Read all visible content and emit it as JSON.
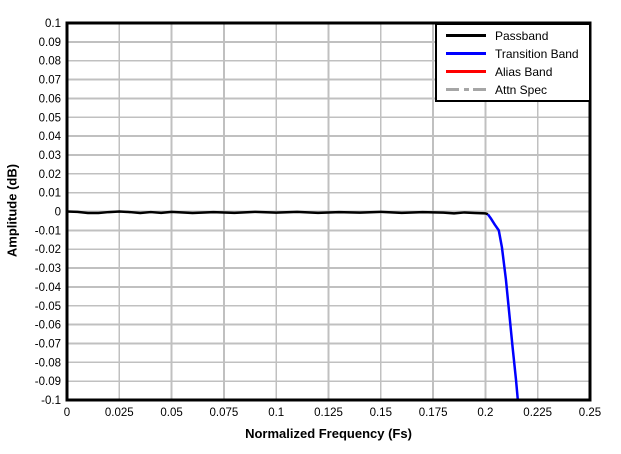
{
  "figure": {
    "background": "#ffffff",
    "plot_border_color": "#000000",
    "grid_color": "#c0c0c0"
  },
  "axes": {
    "xlabel": "Normalized Frequency (Fs)",
    "ylabel": "Amplitude (dB)",
    "xlim": [
      0,
      0.25
    ],
    "ylim": [
      -0.1,
      0.1
    ],
    "xticks": [
      0,
      0.025,
      0.05,
      0.075,
      0.1,
      0.125,
      0.15,
      0.175,
      0.2,
      0.225,
      0.25
    ],
    "xtick_labels": [
      "0",
      "0.025",
      "0.05",
      "0.075",
      "0.1",
      "0.125",
      "0.15",
      "0.175",
      "0.2",
      "0.225",
      "0.25"
    ],
    "yticks": [
      0.1,
      0.09,
      0.08,
      0.07,
      0.06,
      0.05,
      0.04,
      0.03,
      0.02,
      0.01,
      0,
      -0.01,
      -0.02,
      -0.03,
      -0.04,
      -0.05,
      -0.06,
      -0.07,
      -0.08,
      -0.09,
      -0.1
    ],
    "ytick_labels": [
      "0.1",
      "0.09",
      "0.08",
      "0.07",
      "0.06",
      "0.05",
      "0.04",
      "0.03",
      "0.02",
      "0.01",
      "0",
      "-0.01",
      "-0.02",
      "-0.03",
      "-0.04",
      "-0.05",
      "-0.06",
      "-0.07",
      "-0.08",
      "-0.09",
      "-0.1"
    ]
  },
  "legend": {
    "entries": [
      {
        "label": "Passband",
        "color": "#000000",
        "style": "solid"
      },
      {
        "label": "Transition Band",
        "color": "#0000ff",
        "style": "solid"
      },
      {
        "label": "Alias Band",
        "color": "#ff0000",
        "style": "solid"
      },
      {
        "label": "Attn Spec",
        "color": "#a6a6a6",
        "style": "dash-dot"
      }
    ]
  },
  "chart_data": {
    "type": "line",
    "title": "",
    "xlabel": "Normalized Frequency (Fs)",
    "ylabel": "Amplitude (dB)",
    "xlim": [
      0,
      0.25
    ],
    "ylim": [
      -0.1,
      0.1
    ],
    "grid": true,
    "legend_position": "upper right",
    "series": [
      {
        "name": "Passband",
        "color": "#000000",
        "style": "solid",
        "x": [
          0,
          0.005,
          0.01,
          0.015,
          0.02,
          0.025,
          0.03,
          0.035,
          0.04,
          0.045,
          0.05,
          0.06,
          0.07,
          0.08,
          0.09,
          0.1,
          0.11,
          0.12,
          0.13,
          0.14,
          0.15,
          0.16,
          0.17,
          0.18,
          0.185,
          0.19,
          0.195,
          0.2,
          0.2012
        ],
        "y": [
          0,
          -0.0002,
          -0.0008,
          -0.0008,
          -0.0003,
          0,
          -0.0003,
          -0.0008,
          -0.0003,
          -0.0007,
          -0.0002,
          -0.0008,
          -0.0003,
          -0.0007,
          -0.0002,
          -0.0006,
          -0.0002,
          -0.0007,
          -0.0003,
          -0.0006,
          -0.0002,
          -0.0007,
          -0.0003,
          -0.0006,
          -0.001,
          -0.0005,
          -0.0008,
          -0.001,
          -0.0015
        ]
      },
      {
        "name": "Transition Band",
        "color": "#0000ff",
        "style": "solid",
        "x": [
          0.2012,
          0.2025,
          0.2045,
          0.2064,
          0.2079,
          0.2098,
          0.2114,
          0.213,
          0.2146,
          0.2155
        ],
        "y": [
          -0.0015,
          -0.0035,
          -0.007,
          -0.01,
          -0.019,
          -0.036,
          -0.054,
          -0.072,
          -0.089,
          -0.1
        ]
      },
      {
        "name": "Alias Band",
        "color": "#ff0000",
        "style": "solid",
        "x": [],
        "y": []
      },
      {
        "name": "Attn Spec",
        "color": "#a6a6a6",
        "style": "dash-dot",
        "x": [],
        "y": []
      }
    ]
  }
}
